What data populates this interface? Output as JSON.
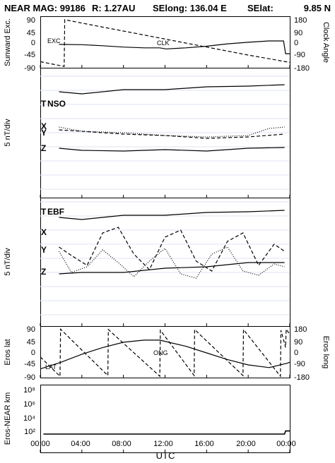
{
  "header": {
    "title": "NEAR MAG: 99186",
    "distance": "R: 1.27AU",
    "selong": "SElong: 136.04 E",
    "selat": "SElat:",
    "selat_value": "9.85 N"
  },
  "chart_data": [
    {
      "type": "line",
      "panel": "angles",
      "ylabel_left": "Sunward Exc.",
      "ylabel_right": "Clock Angle",
      "yticks_left": [
        "90",
        "45",
        "0",
        "-45",
        "-90"
      ],
      "yticks_right": [
        "180",
        "90",
        "0",
        "-90",
        "-180"
      ],
      "ylim_left": [
        -90,
        90
      ],
      "ylim_right": [
        -180,
        180
      ],
      "annotations": [
        "EXC",
        "CLK"
      ],
      "series": [
        {
          "name": "EXC",
          "style": "solid",
          "axis": "left",
          "x": [
            1.8,
            4,
            6,
            8,
            10,
            11.5,
            12.1,
            14,
            16,
            18,
            20,
            22,
            23.4,
            23.6,
            24
          ],
          "y": [
            -5,
            -6,
            -10,
            -15,
            -18,
            -18,
            -22,
            -18,
            -12,
            -3,
            3,
            8,
            8,
            -40,
            -40
          ]
        },
        {
          "name": "CLK",
          "style": "dashed",
          "axis": "right",
          "x": [
            0,
            2.3,
            2.35,
            4,
            8,
            12,
            16,
            20,
            24
          ],
          "y": [
            -140,
            -175,
            175,
            150,
            90,
            30,
            -30,
            -90,
            -145
          ]
        }
      ]
    },
    {
      "type": "line",
      "panel": "NSO",
      "ylabel": "5 nT/div",
      "legend": [
        "T",
        "NSO",
        "X",
        "Y",
        "Z"
      ],
      "series": [
        {
          "name": "T",
          "style": "solid",
          "x": [
            1.8,
            4,
            8,
            12,
            16,
            20,
            23.5
          ],
          "y": [
            2.9,
            2.75,
            3.05,
            3.05,
            3.25,
            3.3,
            3.4
          ]
        },
        {
          "name": "X",
          "style": "dotted",
          "x": [
            1.8,
            4,
            8,
            12,
            16,
            20,
            22,
            23.5
          ],
          "y": [
            0.4,
            0.1,
            0.0,
            -0.2,
            -0.3,
            -0.2,
            0.3,
            0.4
          ]
        },
        {
          "name": "Y",
          "style": "dashed",
          "x": [
            1.8,
            4,
            8,
            12,
            16,
            20,
            23.5
          ],
          "y": [
            0.2,
            0.1,
            -0.1,
            -0.2,
            -0.4,
            -0.3,
            -0.1
          ]
        },
        {
          "name": "Z",
          "style": "solid",
          "x": [
            1.8,
            4,
            8,
            12,
            16,
            20,
            23.5
          ],
          "y": [
            -1.1,
            -1.25,
            -1.3,
            -1.2,
            -1.3,
            -1.1,
            -1.05
          ]
        }
      ]
    },
    {
      "type": "line",
      "panel": "EBF",
      "ylabel": "5 nT/div",
      "legend": [
        "T",
        "EBF",
        "X",
        "Y",
        "Z"
      ],
      "series": [
        {
          "name": "T",
          "style": "solid",
          "x": [
            1.8,
            4,
            8,
            12,
            16,
            20,
            23.5
          ],
          "y": [
            2.9,
            2.75,
            3.05,
            3.05,
            3.25,
            3.3,
            3.4
          ]
        },
        {
          "name": "X",
          "style": "dashed",
          "x": [
            1.8,
            3,
            4.5,
            6,
            7.5,
            9,
            10.5,
            12,
            13.5,
            15,
            16.5,
            18,
            19.5,
            21,
            22.5,
            23.5
          ],
          "y": [
            0.8,
            0.2,
            -0.5,
            1.8,
            2.2,
            0.3,
            -0.8,
            1.5,
            2.0,
            -0.2,
            -0.9,
            1.2,
            1.8,
            -0.5,
            1.0,
            0.5
          ]
        },
        {
          "name": "Y",
          "style": "dotted",
          "x": [
            1.8,
            3,
            4.5,
            6,
            7.5,
            9,
            10.5,
            12,
            13.5,
            15,
            16.5,
            18,
            19.5,
            21,
            22.5,
            23.5
          ],
          "y": [
            0.5,
            -1.0,
            -0.6,
            0.6,
            -0.3,
            -1.3,
            -0.2,
            0.7,
            -1.1,
            -1.4,
            0.3,
            0.8,
            -0.9,
            -1.2,
            -0.4,
            -0.6
          ]
        },
        {
          "name": "Z",
          "style": "solid",
          "x": [
            1.8,
            4,
            8,
            12,
            16,
            20,
            23.5
          ],
          "y": [
            -1.1,
            -1.0,
            -1.0,
            -0.7,
            -0.6,
            -0.3,
            -0.3
          ]
        }
      ]
    },
    {
      "type": "line",
      "panel": "eros",
      "ylabel_left": "Eros lat",
      "ylabel_right": "Eros long",
      "yticks_left": [
        "90",
        "45",
        "0",
        "-45",
        "-90"
      ],
      "yticks_right": [
        "180",
        "90",
        "0",
        "-90",
        "-180"
      ],
      "ylim_left": [
        -90,
        90
      ],
      "ylim_right": [
        -180,
        180
      ],
      "annotations": [
        "LAT",
        "ONG"
      ],
      "series": [
        {
          "name": "LAT",
          "style": "solid",
          "axis": "left",
          "x": [
            0,
            2,
            4,
            6,
            8,
            10,
            11.5,
            14,
            16,
            18,
            20,
            22,
            23.8,
            24
          ],
          "y": [
            -60,
            -35,
            -5,
            20,
            40,
            48,
            48,
            25,
            0,
            -25,
            -45,
            -55,
            -38,
            -35
          ]
        },
        {
          "name": "ONG",
          "style": "dashed",
          "axis": "right",
          "x": [
            0,
            1.9,
            1.95,
            6.5,
            6.55,
            11.5,
            11.55,
            14.8,
            14.85,
            19.5,
            19.55,
            23.1,
            23.15,
            23.6,
            23.65,
            24
          ],
          "y": [
            -30,
            -175,
            178,
            -170,
            175,
            -175,
            170,
            -170,
            175,
            -170,
            175,
            -175,
            170,
            40,
            178,
            140
          ]
        }
      ]
    },
    {
      "type": "line",
      "panel": "distance",
      "ylabel": "Eros-NEAR km",
      "yscale": "log",
      "yticks": [
        "10⁸",
        "10⁶",
        "10⁴",
        "10²"
      ],
      "ylim": [
        1,
        100000000
      ],
      "series": [
        {
          "name": "distance",
          "style": "solid",
          "x": [
            0.3,
            11.5,
            11.7,
            23.5,
            23.6,
            24
          ],
          "y": [
            40,
            40,
            40,
            40,
            110,
            110
          ]
        }
      ]
    }
  ],
  "x_axis": {
    "ticks": [
      "00:00",
      "04:00",
      "08:00",
      "12:00",
      "16:00",
      "20:00",
      "00:00"
    ],
    "label": "UTC"
  }
}
